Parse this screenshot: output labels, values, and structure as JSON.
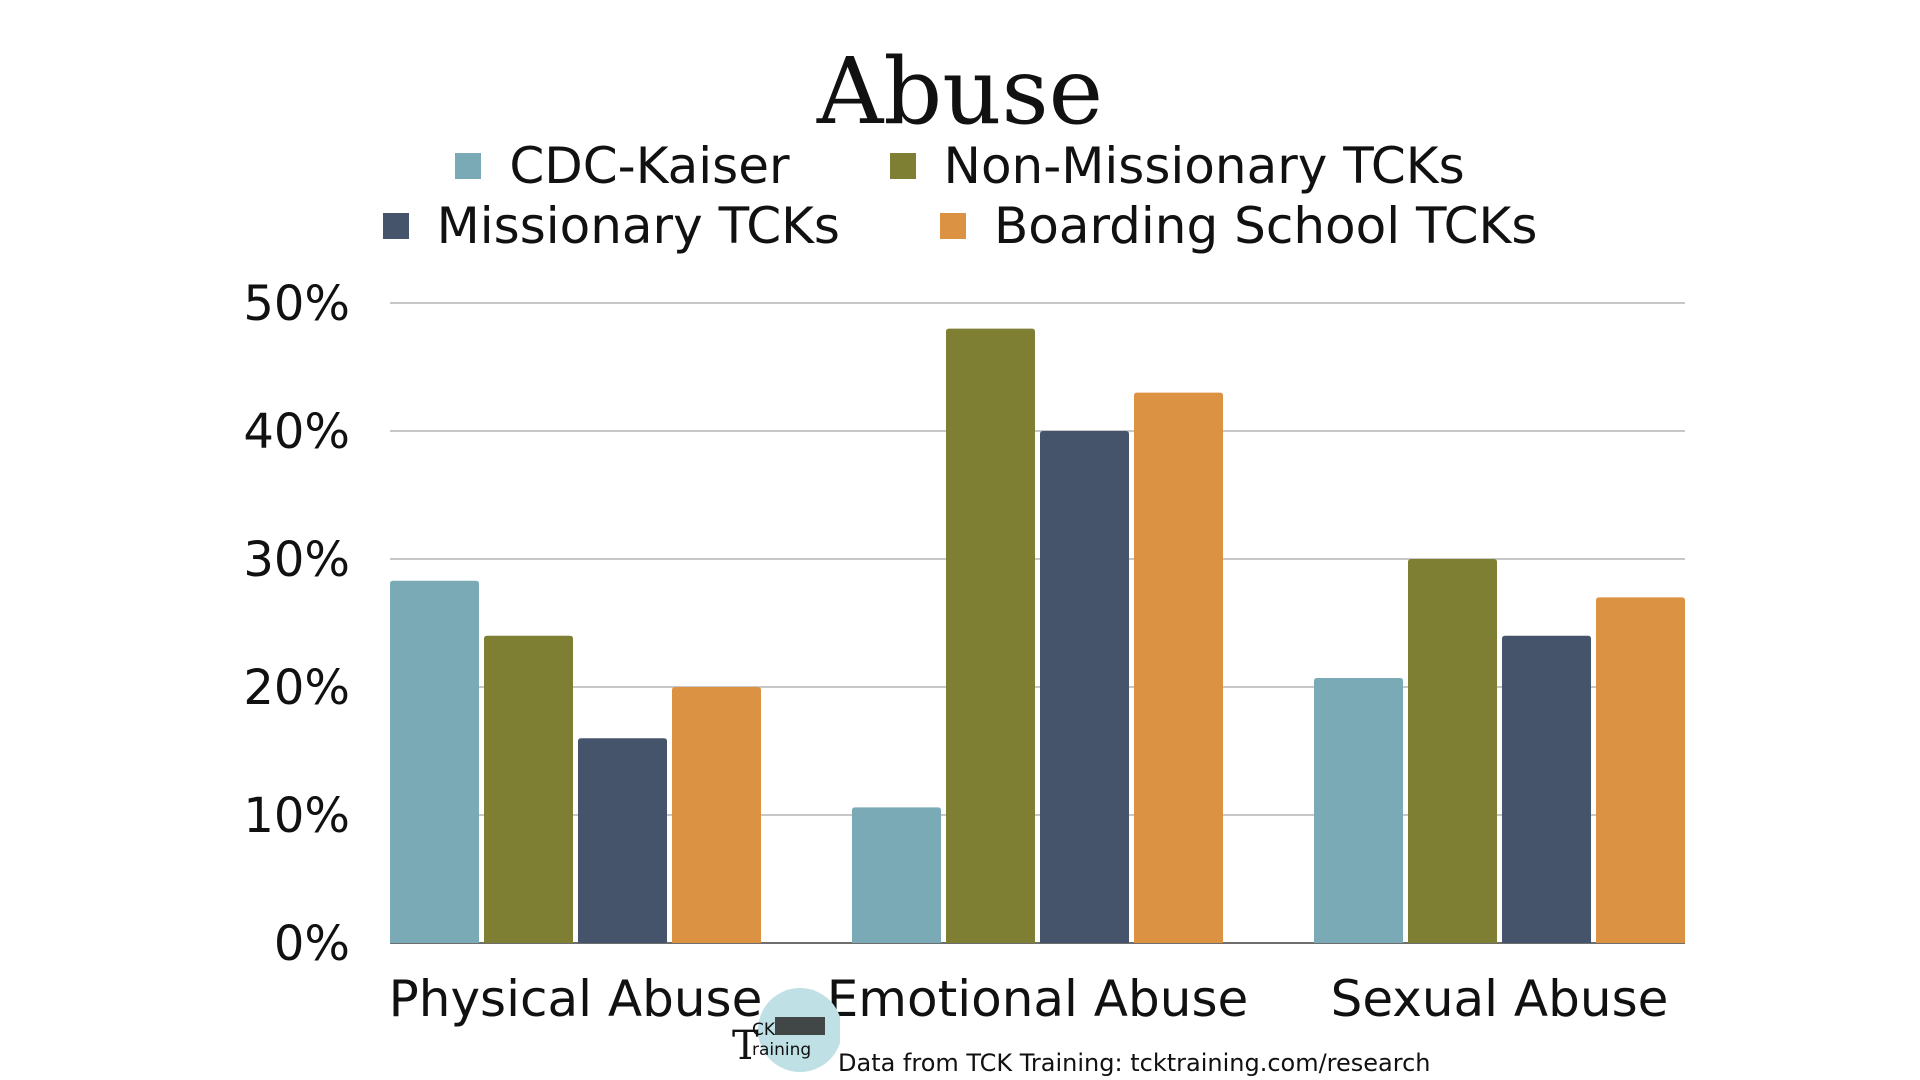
{
  "chart_data": {
    "type": "bar",
    "title": "Abuse",
    "categories": [
      "Physical Abuse",
      "Emotional Abuse",
      "Sexual Abuse"
    ],
    "series": [
      {
        "name": "CDC-Kaiser",
        "color": "#7aaab5",
        "values": [
          28.3,
          10.6,
          20.7
        ]
      },
      {
        "name": "Non-Missionary TCKs",
        "color": "#7e7f33",
        "values": [
          24,
          48,
          30
        ]
      },
      {
        "name": "Missionary TCKs",
        "color": "#45546b",
        "values": [
          16,
          40,
          24
        ]
      },
      {
        "name": "Boarding School TCKs",
        "color": "#db9242",
        "values": [
          20,
          43,
          27
        ]
      }
    ],
    "ylim": [
      0,
      50
    ],
    "yticks": [
      "0%",
      "10%",
      "20%",
      "30%",
      "40%",
      "50%"
    ],
    "grid": true,
    "legend_position": "top",
    "xlabel": "",
    "ylabel": ""
  },
  "footer": {
    "logo_text_top": "CK",
    "logo_text_bottom": "raining",
    "logo_letter": "T",
    "source": "Data from TCK Training: tcktraining.com/research"
  }
}
